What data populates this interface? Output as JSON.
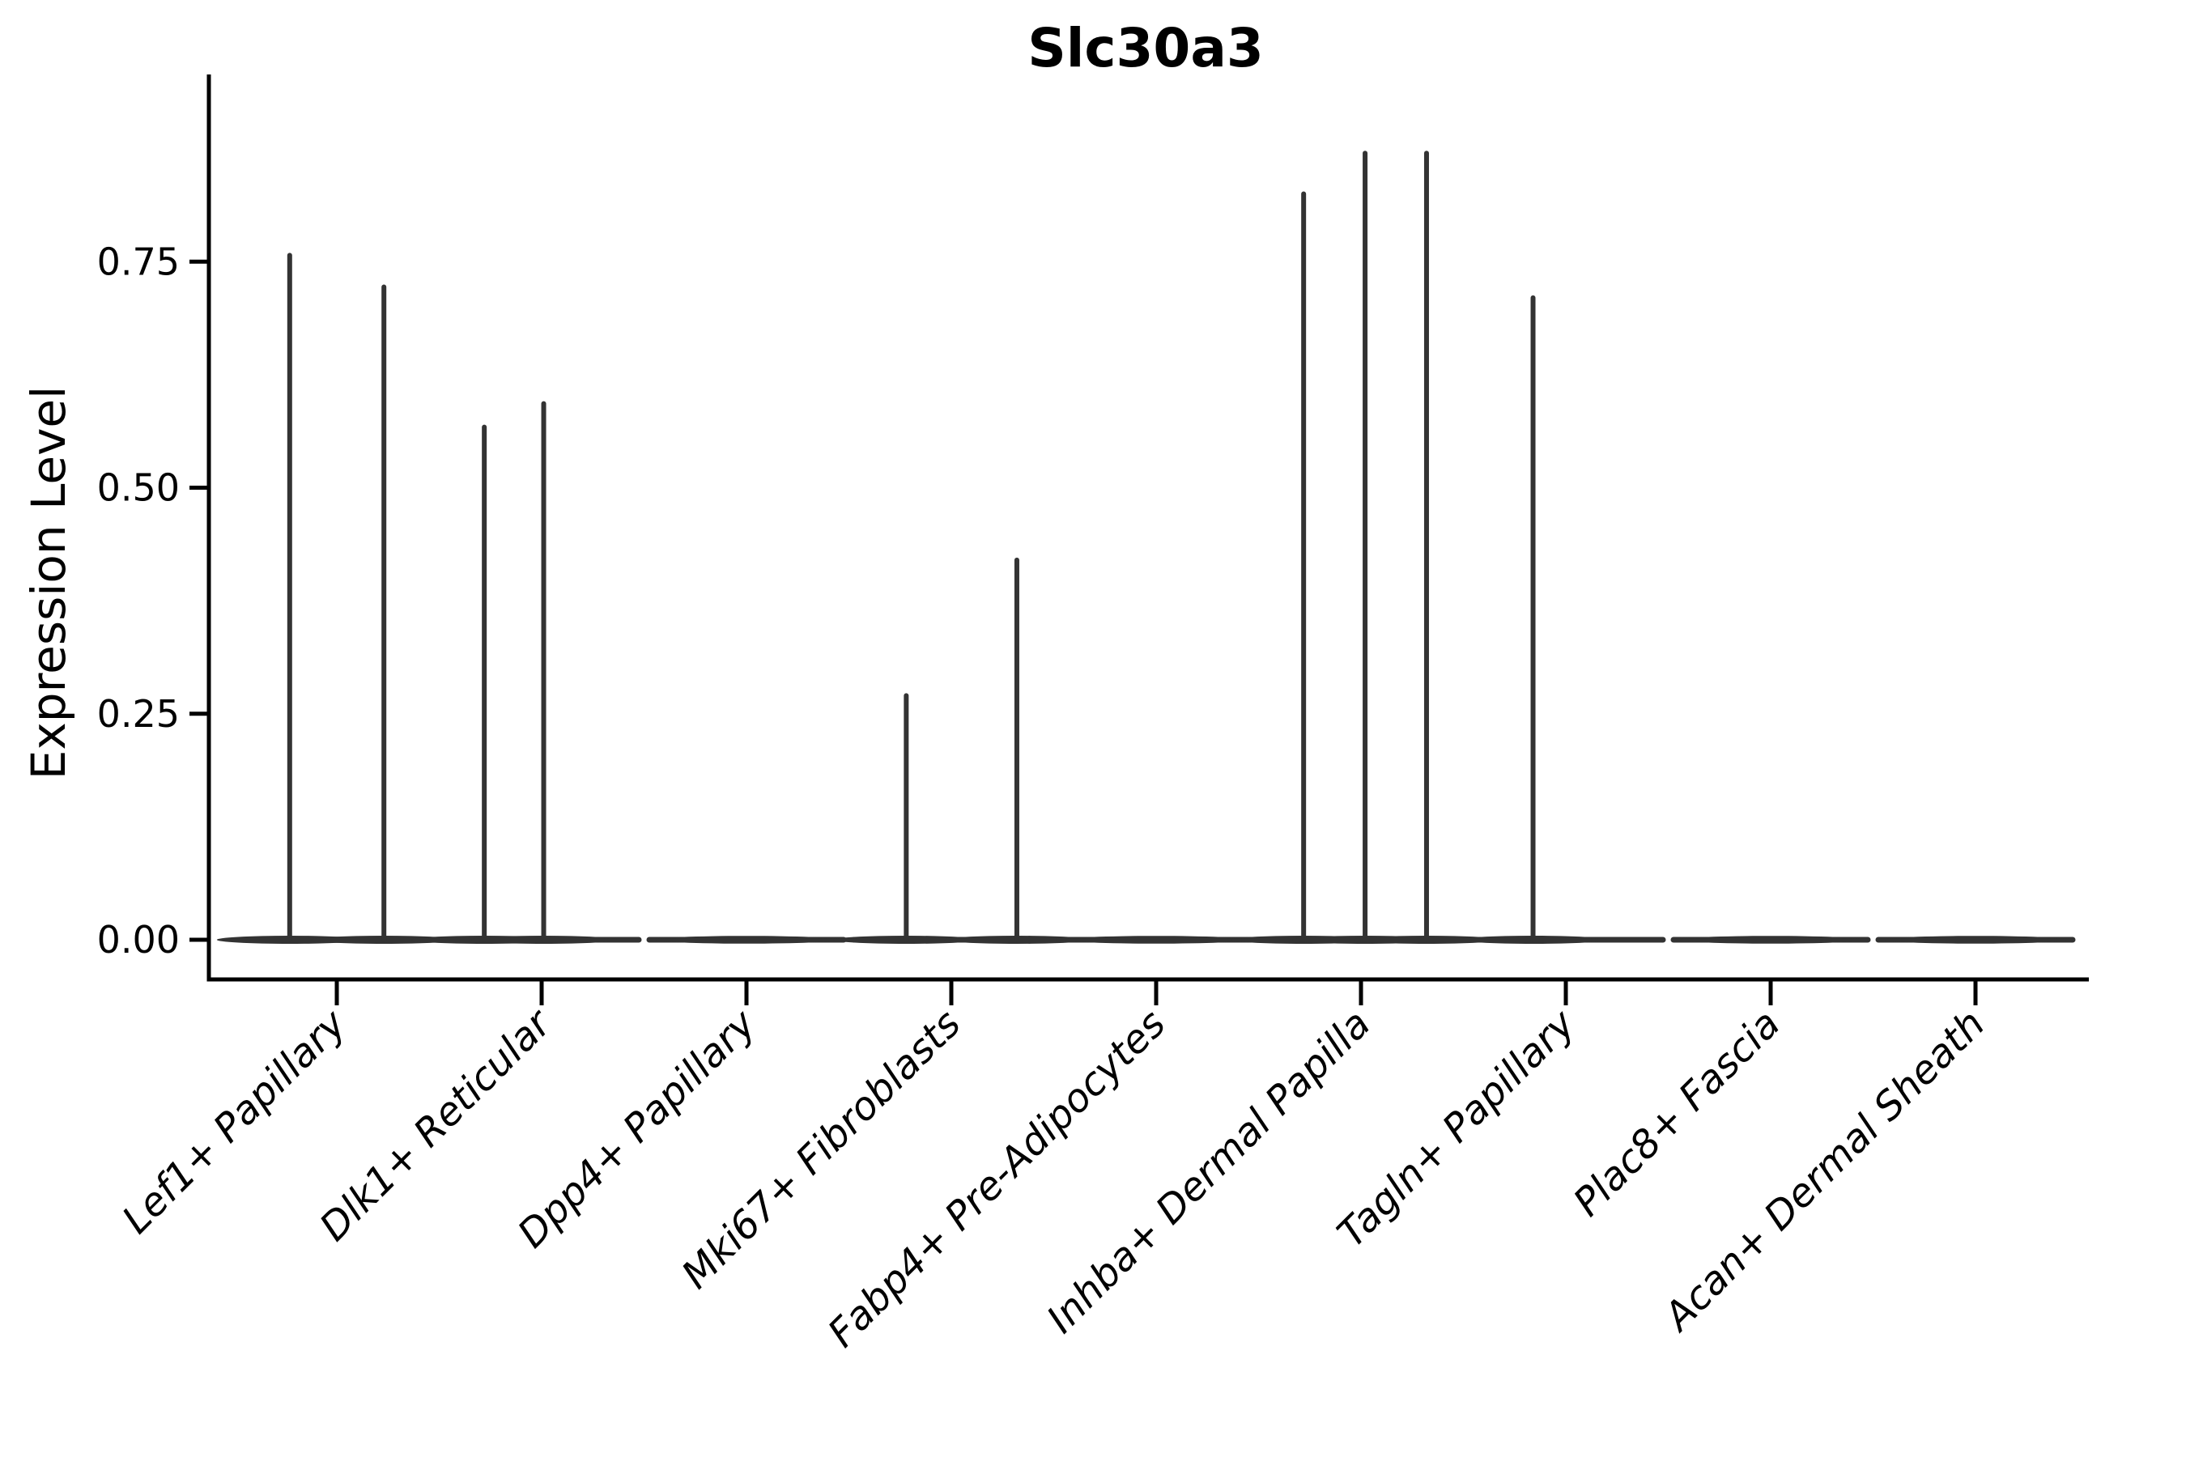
{
  "figure": {
    "background": "#ffffff"
  },
  "chart_data": {
    "type": "violin",
    "title": "Slc30a3",
    "ylabel": "Expression Level",
    "xlabel": "",
    "ylim": [
      0,
      0.95
    ],
    "grid": false,
    "legend": "none",
    "yticks": {
      "values": [
        0,
        0.25,
        0.5,
        0.75
      ],
      "labels": [
        "0.00",
        "0.25",
        "0.50",
        "0.75"
      ]
    },
    "style": {
      "violin_color": "#333333",
      "axis_color": "#000000",
      "text_color": "#000000",
      "background": "#ffffff"
    },
    "categories": [
      {
        "label": "Lef1+ Papillary",
        "baseline": 0,
        "spikes": [
          {
            "offset": -0.23,
            "peak": 0.757
          },
          {
            "offset": 0.23,
            "peak": 0.722
          }
        ]
      },
      {
        "label": "Dlk1+ Reticular",
        "baseline": 0,
        "spikes": [
          {
            "offset": -0.28,
            "peak": 0.567
          },
          {
            "offset": 0.01,
            "peak": 0.593
          }
        ]
      },
      {
        "label": "Dpp4+ Papillary",
        "baseline": 0,
        "spikes": []
      },
      {
        "label": "Mki67+ Fibroblasts",
        "baseline": 0,
        "spikes": [
          {
            "offset": -0.22,
            "peak": 0.27
          },
          {
            "offset": 0.32,
            "peak": 0.42
          }
        ]
      },
      {
        "label": "Fabp4+ Pre-Adipocytes",
        "baseline": 0,
        "spikes": []
      },
      {
        "label": "Inhba+ Dermal Papilla",
        "baseline": 0,
        "spikes": [
          {
            "offset": -0.28,
            "peak": 0.825
          },
          {
            "offset": 0.02,
            "peak": 0.87
          },
          {
            "offset": 0.32,
            "peak": 0.87
          }
        ]
      },
      {
        "label": "Tagln+ Papillary",
        "baseline": 0,
        "spikes": [
          {
            "offset": -0.16,
            "peak": 0.71
          }
        ]
      },
      {
        "label": "Plac8+ Fascia",
        "baseline": 0,
        "spikes": []
      },
      {
        "label": "Acan+ Dermal Sheath",
        "baseline": 0,
        "spikes": []
      }
    ]
  }
}
